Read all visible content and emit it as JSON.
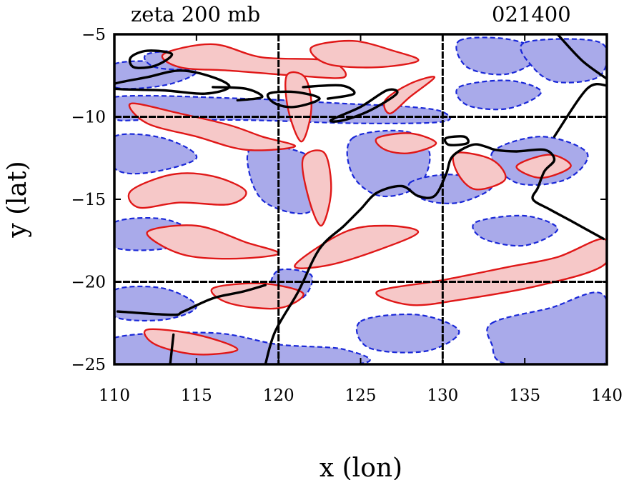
{
  "title": "zeta 200 mb",
  "timestamp": "021400",
  "x_axis_label": "x (lon)",
  "y_axis_label": "y (lat)",
  "x_ticks": [
    "110",
    "115",
    "120",
    "125",
    "130",
    "135",
    "140"
  ],
  "y_ticks": [
    "−5",
    "−10",
    "−15",
    "−20",
    "−25"
  ],
  "colors": {
    "positive_fill": "#f6c8c8",
    "positive_line": "#e01818",
    "negative_fill": "#a9aaea",
    "negative_line": "#1a28d8",
    "coastline": "#000000",
    "grid": "#000000"
  },
  "chart_data": {
    "type": "contour_map",
    "title": "zeta 200 mb",
    "xlabel": "x (lon)",
    "ylabel": "y (lat)",
    "xlim": [
      110,
      140
    ],
    "ylim": [
      -25,
      -5
    ],
    "grid_lon": [
      120,
      130
    ],
    "grid_lat": [
      -10,
      -20
    ],
    "positive_regions": [
      [
        [
          113,
          -6.2
        ],
        [
          116,
          -5.6
        ],
        [
          119,
          -6.4
        ],
        [
          123,
          -6.6
        ],
        [
          124,
          -7.6
        ],
        [
          121,
          -7.5
        ],
        [
          117,
          -7.2
        ],
        [
          114,
          -7.0
        ]
      ],
      [
        [
          122,
          -5.8
        ],
        [
          124.5,
          -5.4
        ],
        [
          127,
          -6.0
        ],
        [
          128.5,
          -6.6
        ],
        [
          126,
          -7.0
        ],
        [
          123,
          -6.8
        ]
      ],
      [
        [
          126.5,
          -9.0
        ],
        [
          128,
          -8.0
        ],
        [
          129.5,
          -7.6
        ],
        [
          128,
          -8.8
        ],
        [
          126.8,
          -9.8
        ]
      ],
      [
        [
          111,
          -9.2
        ],
        [
          114,
          -9.8
        ],
        [
          117,
          -10.5
        ],
        [
          119,
          -11.2
        ],
        [
          121,
          -11.8
        ],
        [
          118,
          -12.0
        ],
        [
          115,
          -11.2
        ],
        [
          112,
          -10.4
        ]
      ],
      [
        [
          120.5,
          -7.5
        ],
        [
          121.6,
          -7.6
        ],
        [
          122,
          -9.5
        ],
        [
          121.4,
          -11.5
        ],
        [
          120.6,
          -9.6
        ]
      ],
      [
        [
          111,
          -14.5
        ],
        [
          113.5,
          -13.5
        ],
        [
          116,
          -13.6
        ],
        [
          118,
          -14.5
        ],
        [
          117,
          -15.3
        ],
        [
          114,
          -15.2
        ],
        [
          111.5,
          -15.5
        ]
      ],
      [
        [
          121.5,
          -12.5
        ],
        [
          122.8,
          -12.2
        ],
        [
          123.2,
          -14.5
        ],
        [
          122.6,
          -16.6
        ],
        [
          121.8,
          -14.8
        ]
      ],
      [
        [
          112,
          -17.0
        ],
        [
          115,
          -16.6
        ],
        [
          118,
          -17.6
        ],
        [
          120,
          -18.3
        ],
        [
          117,
          -18.6
        ],
        [
          114,
          -18.3
        ]
      ],
      [
        [
          121,
          -19.0
        ],
        [
          124,
          -17.0
        ],
        [
          126.5,
          -16.6
        ],
        [
          128.5,
          -17.0
        ],
        [
          126,
          -18.1
        ],
        [
          123,
          -19.0
        ]
      ],
      [
        [
          116,
          -20.4
        ],
        [
          119,
          -20.1
        ],
        [
          121.5,
          -20.7
        ],
        [
          120,
          -21.6
        ],
        [
          117,
          -21.3
        ]
      ],
      [
        [
          112,
          -22.9
        ],
        [
          115,
          -23.2
        ],
        [
          117.5,
          -24.1
        ],
        [
          115,
          -24.4
        ],
        [
          112.5,
          -23.8
        ]
      ],
      [
        [
          126,
          -20.6
        ],
        [
          130,
          -19.9
        ],
        [
          134,
          -19.1
        ],
        [
          137,
          -18.5
        ],
        [
          139.8,
          -17.4
        ],
        [
          139.8,
          -19.0
        ],
        [
          136,
          -20.2
        ],
        [
          131,
          -21.1
        ],
        [
          128,
          -21.4
        ]
      ],
      [
        [
          130.8,
          -12.2
        ],
        [
          133,
          -12.6
        ],
        [
          133.8,
          -13.8
        ],
        [
          132,
          -14.4
        ],
        [
          130.9,
          -13.4
        ]
      ],
      [
        [
          126,
          -11.3
        ],
        [
          128,
          -11.0
        ],
        [
          129.6,
          -11.6
        ],
        [
          128,
          -12.2
        ],
        [
          126.5,
          -12.0
        ]
      ],
      [
        [
          134.5,
          -13.0
        ],
        [
          136.5,
          -12.3
        ],
        [
          137.8,
          -13.0
        ],
        [
          136,
          -13.7
        ]
      ]
    ],
    "negative_regions": [
      [
        [
          110,
          -6.8
        ],
        [
          113.5,
          -6.7
        ],
        [
          115,
          -7.3
        ],
        [
          113,
          -8.1
        ],
        [
          110,
          -8.2
        ]
      ],
      [
        [
          110,
          -8.8
        ],
        [
          118,
          -8.9
        ],
        [
          124,
          -9.2
        ],
        [
          128,
          -9.4
        ],
        [
          130,
          -9.7
        ],
        [
          130,
          -10.3
        ],
        [
          125,
          -10.4
        ],
        [
          118,
          -10.2
        ],
        [
          112,
          -10.2
        ],
        [
          110,
          -10.1
        ]
      ],
      [
        [
          112,
          -6.2
        ],
        [
          115,
          -6.0
        ],
        [
          117.5,
          -6.6
        ],
        [
          115,
          -7.1
        ],
        [
          112.5,
          -7.0
        ]
      ],
      [
        [
          131,
          -5.4
        ],
        [
          134,
          -5.3
        ],
        [
          136,
          -6.2
        ],
        [
          134,
          -7.4
        ],
        [
          131.5,
          -7.0
        ]
      ],
      [
        [
          135,
          -5.5
        ],
        [
          139.6,
          -5.5
        ],
        [
          139.6,
          -7.5
        ],
        [
          137,
          -7.9
        ],
        [
          135.5,
          -7.0
        ]
      ],
      [
        [
          131,
          -8.2
        ],
        [
          134,
          -7.8
        ],
        [
          136,
          -8.5
        ],
        [
          134,
          -9.5
        ],
        [
          131.5,
          -9.3
        ]
      ],
      [
        [
          110,
          -11.2
        ],
        [
          113,
          -11.3
        ],
        [
          115,
          -12.5
        ],
        [
          112,
          -13.4
        ],
        [
          110,
          -13.1
        ]
      ],
      [
        [
          118.5,
          -11.8
        ],
        [
          121.5,
          -12.2
        ],
        [
          123,
          -13.8
        ],
        [
          121.8,
          -15.8
        ],
        [
          119.2,
          -15.2
        ],
        [
          118.2,
          -13.3
        ]
      ],
      [
        [
          124.5,
          -11.3
        ],
        [
          127.8,
          -10.9
        ],
        [
          129.2,
          -12.2
        ],
        [
          128.5,
          -14.2
        ],
        [
          126.2,
          -14.8
        ],
        [
          124.5,
          -13.5
        ]
      ],
      [
        [
          128,
          -14.0
        ],
        [
          130.5,
          -13.5
        ],
        [
          133,
          -14.2
        ],
        [
          131,
          -15.2
        ],
        [
          128.8,
          -15.0
        ]
      ],
      [
        [
          133,
          -12.2
        ],
        [
          136,
          -11.2
        ],
        [
          138.8,
          -12.2
        ],
        [
          137.5,
          -13.8
        ],
        [
          134.5,
          -14.0
        ]
      ],
      [
        [
          110,
          -16.4
        ],
        [
          113,
          -16.2
        ],
        [
          115,
          -17.2
        ],
        [
          113,
          -18.0
        ],
        [
          110,
          -17.9
        ]
      ],
      [
        [
          110,
          -20.5
        ],
        [
          113,
          -20.4
        ],
        [
          115,
          -21.5
        ],
        [
          113,
          -22.3
        ],
        [
          110,
          -22.1
        ]
      ],
      [
        [
          110,
          -23.4
        ],
        [
          116,
          -23.1
        ],
        [
          120,
          -23.8
        ],
        [
          124,
          -24.1
        ],
        [
          124.5,
          -25
        ],
        [
          110,
          -25
        ]
      ],
      [
        [
          125,
          -22.4
        ],
        [
          128.5,
          -22.0
        ],
        [
          131,
          -23.0
        ],
        [
          129,
          -24.2
        ],
        [
          125.5,
          -24.0
        ]
      ],
      [
        [
          133,
          -22.5
        ],
        [
          136.5,
          -21.6
        ],
        [
          139.8,
          -20.8
        ],
        [
          139.8,
          -25
        ],
        [
          134,
          -25
        ],
        [
          133,
          -23.8
        ]
      ],
      [
        [
          132,
          -16.4
        ],
        [
          135,
          -16.0
        ],
        [
          137,
          -16.8
        ],
        [
          135,
          -17.8
        ],
        [
          132.5,
          -17.4
        ]
      ],
      [
        [
          120,
          -19.3
        ],
        [
          122,
          -19.6
        ],
        [
          121.4,
          -21.0
        ],
        [
          119.6,
          -20.6
        ]
      ]
    ],
    "positive_dashed_lines": [],
    "coastlines": [
      [
        [
          110,
          -8.0
        ],
        [
          112,
          -7.6
        ],
        [
          114,
          -7.2
        ],
        [
          116,
          -7.6
        ],
        [
          117,
          -8.2
        ],
        [
          115.5,
          -8.6
        ],
        [
          113,
          -8.4
        ],
        [
          110,
          -8.3
        ]
      ],
      [
        [
          111,
          -6.4
        ],
        [
          112,
          -6.0
        ],
        [
          113.5,
          -6.2
        ],
        [
          112.5,
          -6.9
        ],
        [
          111.2,
          -7.0
        ]
      ],
      [
        [
          116,
          -8.2
        ],
        [
          118,
          -8.3
        ],
        [
          119,
          -8.8
        ],
        [
          117.5,
          -9.0
        ]
      ],
      [
        [
          119.4,
          -8.6
        ],
        [
          121,
          -8.5
        ],
        [
          122.5,
          -8.9
        ],
        [
          121,
          -9.4
        ],
        [
          119.8,
          -9.2
        ]
      ],
      [
        [
          121.5,
          -8.2
        ],
        [
          123.8,
          -8.1
        ],
        [
          124.6,
          -8.6
        ],
        [
          123,
          -8.9
        ]
      ],
      [
        [
          123.2,
          -10.2
        ],
        [
          125,
          -9.4
        ],
        [
          126.6,
          -8.4
        ],
        [
          127.2,
          -8.6
        ],
        [
          125.6,
          -9.6
        ],
        [
          124,
          -10.2
        ]
      ],
      [
        [
          119.2,
          -25
        ],
        [
          119.8,
          -23.0
        ],
        [
          121.2,
          -20.6
        ],
        [
          122.5,
          -18.0
        ],
        [
          124,
          -16.6
        ],
        [
          125,
          -15.6
        ],
        [
          126,
          -14.6
        ],
        [
          127.5,
          -14.2
        ],
        [
          128.5,
          -14.8
        ],
        [
          129.5,
          -14.8
        ],
        [
          130.2,
          -13.5
        ],
        [
          130.6,
          -12.4
        ],
        [
          131.8,
          -11.7
        ],
        [
          132.6,
          -11.8
        ],
        [
          133.2,
          -12.0
        ],
        [
          134.5,
          -12.1
        ],
        [
          136.2,
          -12.0
        ],
        [
          136.8,
          -12.6
        ],
        [
          136.2,
          -13.3
        ],
        [
          135.8,
          -14.3
        ],
        [
          135.5,
          -15.0
        ],
        [
          136.5,
          -15.6
        ],
        [
          137.8,
          -16.3
        ],
        [
          139.8,
          -17.4
        ]
      ],
      [
        [
          110.2,
          -21.8
        ],
        [
          113.5,
          -22.0
        ],
        [
          114.2,
          -21.8
        ],
        [
          116,
          -21.0
        ],
        [
          117.8,
          -20.6
        ],
        [
          119.2,
          -20.2
        ]
      ],
      [
        [
          113.6,
          -23.2
        ],
        [
          113.4,
          -25
        ]
      ],
      [
        [
          130.2,
          -11.3
        ],
        [
          131.3,
          -11.2
        ],
        [
          131.5,
          -11.6
        ],
        [
          130.4,
          -11.7
        ]
      ],
      [
        [
          136.8,
          -11.2
        ],
        [
          138.8,
          -8.3
        ],
        [
          140,
          -8.1
        ]
      ],
      [
        [
          137.0,
          -5.0
        ],
        [
          138.5,
          -6.6
        ],
        [
          140,
          -7.7
        ]
      ]
    ]
  }
}
